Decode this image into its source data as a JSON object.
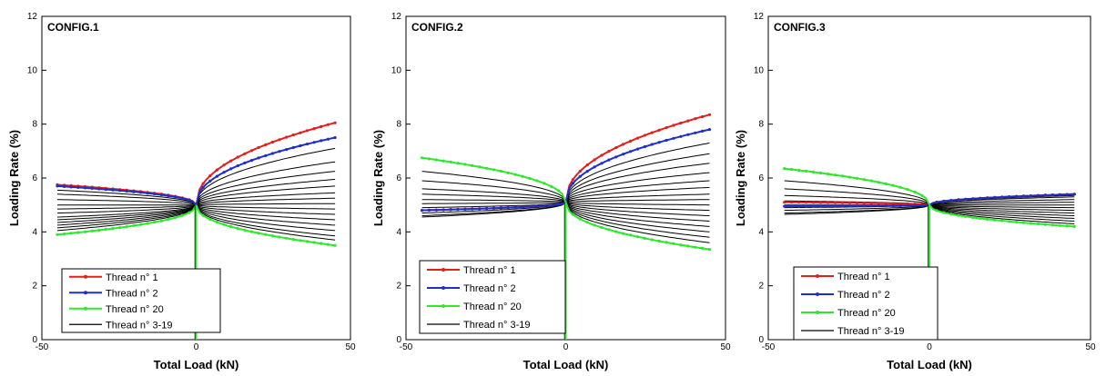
{
  "colors": {
    "thread_1": "#e0201c",
    "thread_2": "#1f2fc8",
    "thread_20": "#2ee82e",
    "thread_3_19": "#000000"
  },
  "chart_data": [
    {
      "type": "line",
      "title": "CONFIG.1",
      "xlabel": "Total Load (kN)",
      "ylabel": "Loading Rate (%)",
      "xlim": [
        -50,
        50
      ],
      "ylim": [
        0,
        12
      ],
      "xticks": [
        "-50",
        "0",
        "50"
      ],
      "yticks": [
        "0",
        "2",
        "4",
        "6",
        "8",
        "10",
        "12"
      ],
      "x_left": -45,
      "x_right": 45,
      "origin": 5.0,
      "legend": [
        "Thread n° 1",
        "Thread n° 2",
        "Thread n° 20",
        "Thread n° 3-19"
      ],
      "series": [
        {
          "name": "Thread n° 1",
          "left_end": 5.75,
          "right_end": 8.05
        },
        {
          "name": "Thread n° 2",
          "left_end": 5.7,
          "right_end": 7.5
        },
        {
          "name": "Thread n° 20",
          "left_end": 3.9,
          "right_end": 3.5
        },
        {
          "name": "Thread n° 3-19",
          "left_ends": [
            5.55,
            5.4,
            5.2,
            5.0,
            4.85,
            4.7,
            4.55,
            4.45,
            4.35,
            4.25,
            4.15,
            4.05
          ],
          "right_ends": [
            7.1,
            6.6,
            6.25,
            5.95,
            5.7,
            5.45,
            5.25,
            5.05,
            4.85,
            4.65,
            4.45,
            4.25,
            4.05,
            3.85,
            3.7
          ]
        }
      ]
    },
    {
      "type": "line",
      "title": "CONFIG.2",
      "xlabel": "Total Load (kN)",
      "ylabel": "Loading Rate (%)",
      "xlim": [
        -50,
        50
      ],
      "ylim": [
        0,
        12
      ],
      "xticks": [
        "-50",
        "0",
        "50"
      ],
      "yticks": [
        "0",
        "2",
        "4",
        "6",
        "8",
        "10",
        "12"
      ],
      "x_left": -45,
      "x_right": 45,
      "origin": 5.1,
      "legend": [
        "Thread n° 1",
        "Thread n° 2",
        "Thread n° 20",
        "Thread n° 3-19"
      ],
      "series": [
        {
          "name": "Thread n° 1",
          "left_end": 4.8,
          "right_end": 8.35
        },
        {
          "name": "Thread n° 2",
          "left_end": 4.8,
          "right_end": 7.8
        },
        {
          "name": "Thread n° 20",
          "left_end": 6.75,
          "right_end": 3.35
        },
        {
          "name": "Thread n° 3-19",
          "left_ends": [
            6.25,
            5.9,
            5.6,
            5.4,
            5.2,
            5.05,
            4.9,
            4.8,
            4.7,
            4.6,
            4.55
          ],
          "right_ends": [
            7.3,
            6.9,
            6.55,
            6.2,
            5.9,
            5.65,
            5.4,
            5.2,
            5.0,
            4.8,
            4.6,
            4.4,
            4.2,
            4.0,
            3.8,
            3.6
          ]
        }
      ]
    },
    {
      "type": "line",
      "title": "CONFIG.3",
      "xlabel": "Total Load (kN)",
      "ylabel": "Loading Rate (%)",
      "xlim": [
        -50,
        50
      ],
      "ylim": [
        0,
        12
      ],
      "xticks": [
        "-50",
        "0",
        "50"
      ],
      "yticks": [
        "0",
        "2",
        "4",
        "6",
        "8",
        "10",
        "12"
      ],
      "x_left": -45,
      "x_right": 45,
      "origin": 5.0,
      "legend": [
        "Thread n° 1",
        "Thread n° 2",
        "Thread n° 20",
        "Thread n° 3-19"
      ],
      "series": [
        {
          "name": "Thread n° 1",
          "left_end": 5.1,
          "right_end": 5.4
        },
        {
          "name": "Thread n° 2",
          "left_end": 4.95,
          "right_end": 5.4
        },
        {
          "name": "Thread n° 20",
          "left_end": 6.35,
          "right_end": 4.2
        },
        {
          "name": "Thread n° 3-19",
          "left_ends": [
            5.9,
            5.6,
            5.35,
            5.15,
            5.0,
            4.9,
            4.8,
            4.7,
            4.65
          ],
          "right_ends": [
            5.35,
            5.3,
            5.2,
            5.1,
            5.0,
            4.9,
            4.8,
            4.7,
            4.6,
            4.5,
            4.4,
            4.3
          ]
        }
      ]
    }
  ]
}
